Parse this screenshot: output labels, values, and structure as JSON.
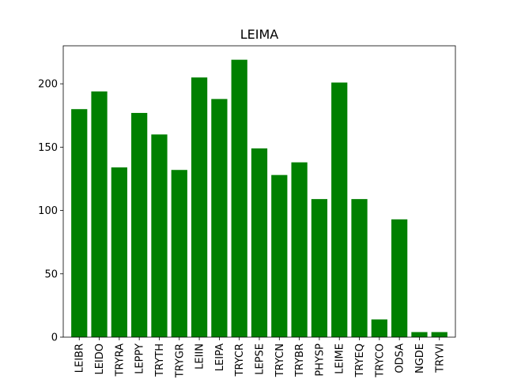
{
  "chart_data": {
    "type": "bar",
    "title": "LEIMA",
    "xlabel": "",
    "ylabel": "",
    "categories": [
      "LEIBR",
      "LEIDO",
      "TRYRA",
      "LEPPY",
      "TRYTH",
      "TRYGR",
      "LEIIN",
      "LEIPA",
      "TRYCR",
      "LEPSE",
      "TRYCN",
      "TRYBR",
      "PHYSP",
      "LEIME",
      "TRYEQ",
      "TRYCO",
      "ODSA",
      "NGDE",
      "TRYVI"
    ],
    "values": [
      180,
      194,
      134,
      177,
      160,
      132,
      205,
      188,
      219,
      149,
      128,
      138,
      109,
      201,
      109,
      14,
      93,
      4,
      4
    ],
    "ylim": [
      0,
      230
    ],
    "yticks": [
      0,
      50,
      100,
      150,
      200
    ],
    "bar_color": "#008000",
    "grid": false,
    "legend": "none"
  }
}
